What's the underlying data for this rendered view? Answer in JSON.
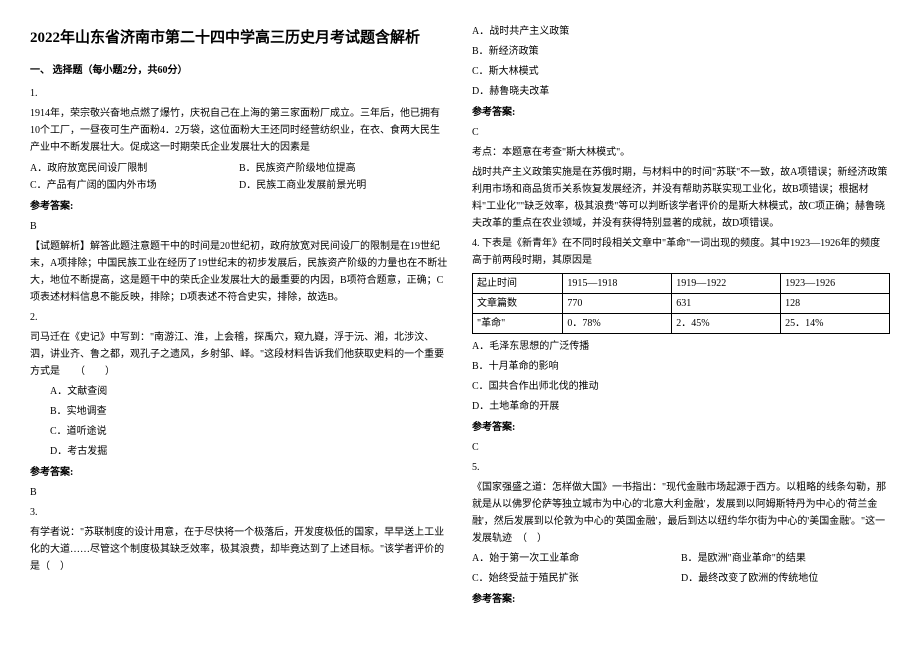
{
  "title": "2022年山东省济南市第二十四中学高三历史月考试题含解析",
  "section1": "一、 选择题（每小题2分，共60分）",
  "q1": {
    "num": "1.",
    "text": "1914年，荣宗敬兴奋地点燃了爆竹，庆祝自己在上海的第三家面粉厂成立。三年后，他已拥有10个工厂，一昼夜可生产面粉4．2万袋，这位面粉大王还同时经营纺织业，在衣、食两大民生产业中不断发展壮大。促成这一时期荣氏企业发展壮大的因素是",
    "A": "A．政府放宽民间设厂限制",
    "B": "B．民族资产阶级地位提高",
    "C": "C．产品有广阔的国内外市场",
    "D": "D．民族工商业发展前景光明",
    "ans_label": "参考答案:",
    "ans": "B",
    "explain": "【试题解析】解答此题注意题干中的时间是20世纪初，政府放宽对民间设厂的限制是在19世纪末，A项排除；中国民族工业在经历了19世纪末的初步发展后，民族资产阶级的力量也在不断壮大，地位不断提高，这是题干中的荣氏企业发展壮大的最重要的内因，B项符合题意，正确；C项表述材料信息不能反映，排除；D项表述不符合史实，排除，故选B。"
  },
  "q2": {
    "num": "2.",
    "text": "司马迁在《史记》中写到：\"南游江、淮，上会稽，探禹穴，窥九嶷，浮于沅、湘，北涉汶、泗，讲业齐、鲁之都，观孔子之遗风，乡射邹、峄。\"这段材料告诉我们他获取史料的一个重要方式是　　（　　）",
    "A": "A．文献查阅",
    "B": "B．实地调查",
    "C": "C．道听途说",
    "D": "D．考古发掘",
    "ans_label": "参考答案:",
    "ans": "B"
  },
  "q3": {
    "num": "3.",
    "text": "有学者说：\"苏联制度的设计用意，在于尽快将一个极落后，开发度极低的国家，早早送上工业化的大道……尽管这个制度极其缺乏效率，极其浪费，却毕竟达到了上述目标。\"该学者评价的是（　）"
  },
  "q3r": {
    "A": "A．战时共产主义政策",
    "B": "B．新经济政策",
    "C": "C．斯大林模式",
    "D": "D．赫鲁晓夫改革",
    "ans_label": "参考答案:",
    "ans": "C",
    "explain": "考点：本题意在考查\"斯大林模式\"。",
    "explain2": "战时共产主义政策实施是在苏俄时期，与材料中的时间\"苏联\"不一致，故A项错误；新经济政策利用市场和商品货币关系恢复发展经济，并没有帮助苏联实现工业化，故B项错误；根据材料\"工业化\"\"缺乏效率，极其浪费\"等可以判断该学者评价的是斯大林模式，故C项正确；赫鲁晓夫改革的重点在农业领域，并没有获得特别显著的成就，故D项错误。"
  },
  "q4": {
    "num": "4.",
    "text": "下表是《新青年》在不同时段相关文章中\"革命\"一词出现的频度。其中1923—1926年的频度高于前两段时期，其原因是",
    "table_headers": [
      "起止时间",
      "1915—1918",
      "1919—1922",
      "1923—1926"
    ],
    "row1": [
      "文章篇数",
      "770",
      "631",
      "128"
    ],
    "row2": [
      "\"革命\"",
      "0．78%",
      "2．45%",
      "25．14%"
    ],
    "A": "A．毛泽东思想的广泛传播",
    "B": "B．十月革命的影响",
    "C": "C．国共合作出师北伐的推动",
    "D": "D．土地革命的开展",
    "ans_label": "参考答案:",
    "ans": "C"
  },
  "q5": {
    "num": "5.",
    "text": "《国家强盛之道：怎样做大国》一书指出：\"现代金融市场起源于西方。以粗略的线条勾勒，那就是从以佛罗伦萨等独立城市为中心的'北意大利金融'，发展到以阿姆斯特丹为中心的'荷兰金融'，然后发展到以伦敦为中心的'英国金融'，最后到达以纽约华尔街为中心的'美国金融'。\"这一发展轨迹　（　）",
    "A": "A．始于第一次工业革命",
    "B": "B．是欧洲\"商业革命\"的结果",
    "C": "C．始终受益于殖民扩张",
    "D": "D．最终改变了欧洲的传统地位",
    "ans_label": "参考答案:"
  }
}
